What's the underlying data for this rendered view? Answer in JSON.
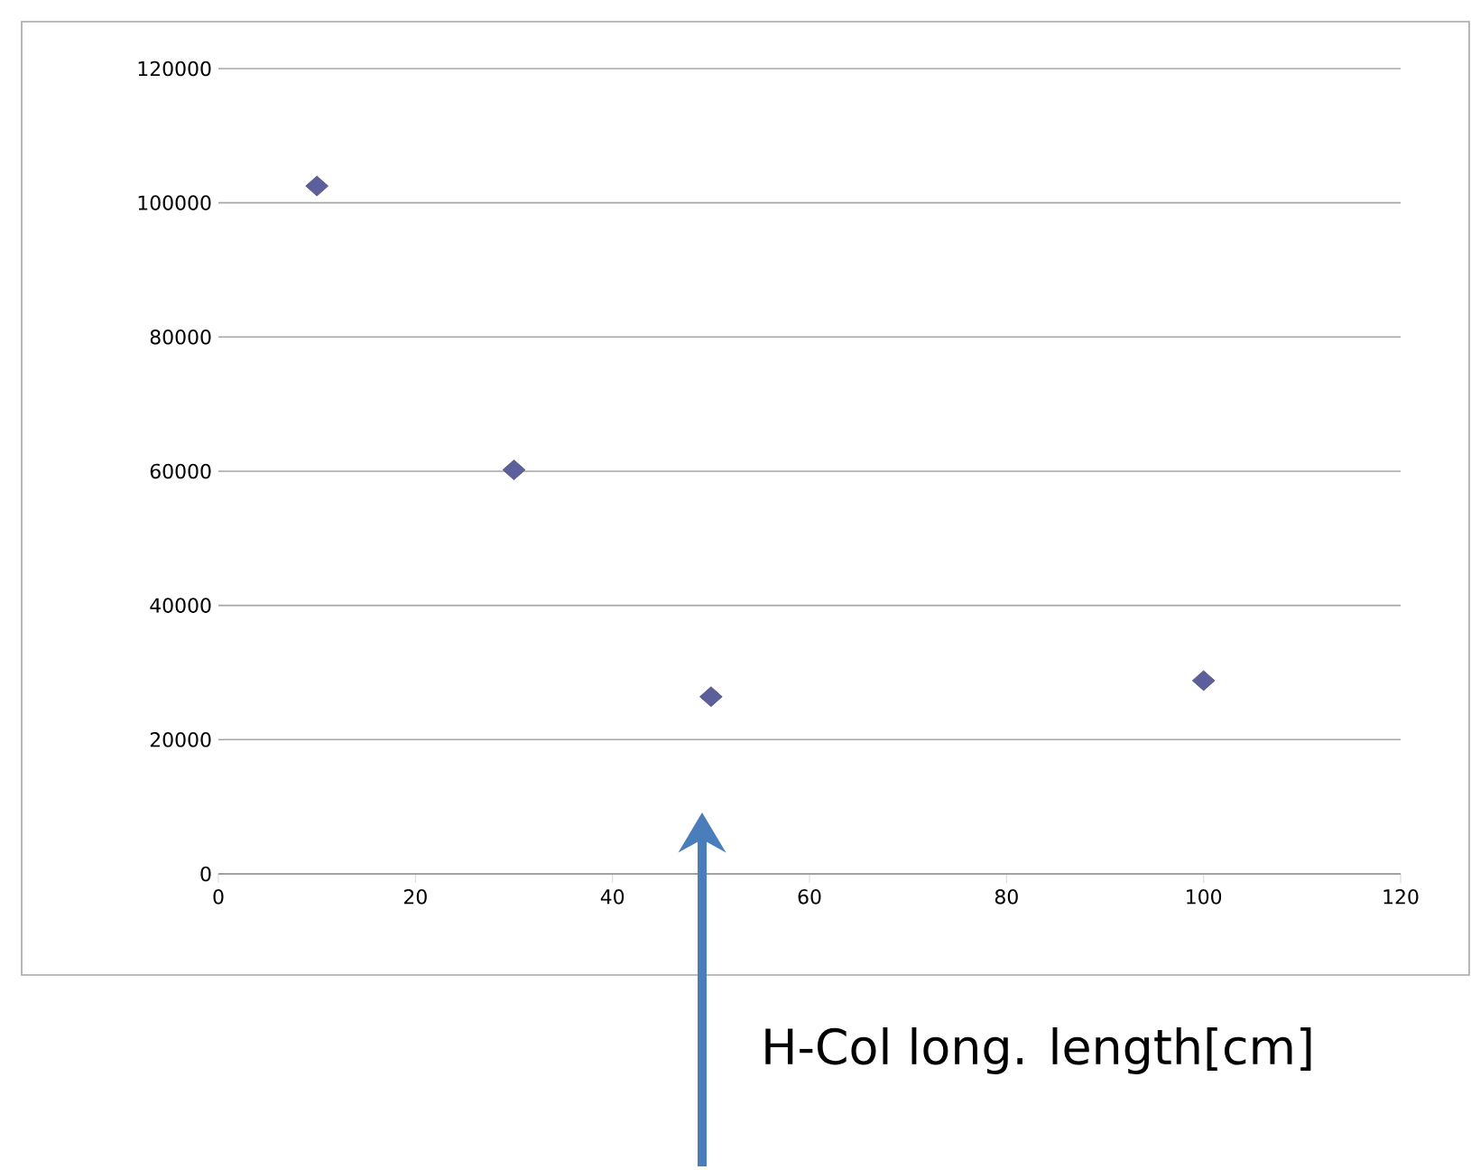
{
  "chart_data": {
    "type": "scatter",
    "xlabel": "H-Col long. length[cm]",
    "series": [
      {
        "color": "#5c5f9c",
        "x": [
          10,
          30,
          50,
          100
        ],
        "values": [
          102500,
          60200,
          26400,
          28800
        ]
      }
    ],
    "xlim": [
      0,
      120
    ],
    "xticks": [
      0,
      20,
      40,
      60,
      80,
      100,
      120
    ],
    "ylim": [
      0,
      120000
    ],
    "yticks": [
      0,
      20000,
      40000,
      60000,
      80000,
      100000,
      120000
    ],
    "grid": "y",
    "marker": "diamond"
  }
}
